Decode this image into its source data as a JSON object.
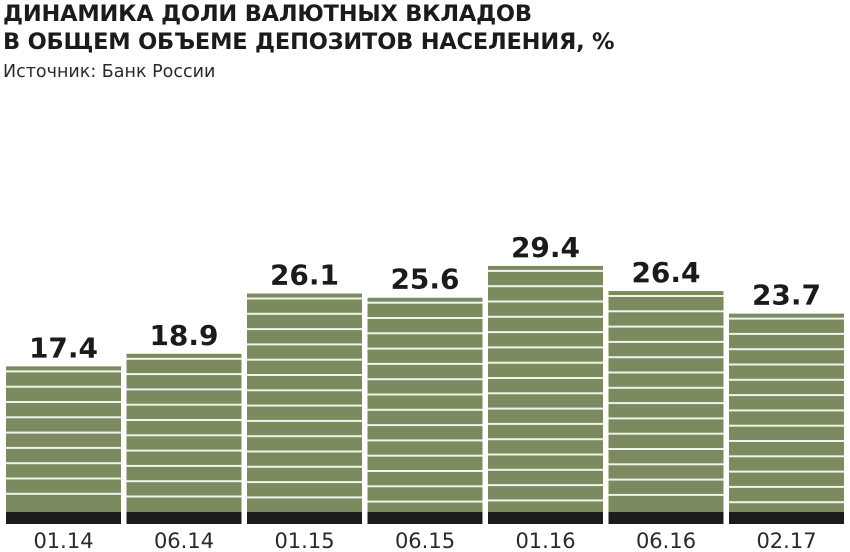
{
  "header": {
    "title_line1": "ДИНАМИКА ДОЛИ ВАЛЮТНЫХ ВКЛАДОВ",
    "title_line2": "В ОБЩЕМ ОБЪЕМЕ ДЕПОЗИТОВ НАСЕЛЕНИЯ, %",
    "source": "Источник: Банк России"
  },
  "colors": {
    "bar": "#7b8a5f",
    "stripe": "#f2f2ea",
    "baseline": "#1c1c1c",
    "text": "#1b1b1b"
  },
  "chart_data": {
    "type": "bar",
    "title": "ДИНАМИКА ДОЛИ ВАЛЮТНЫХ ВКЛАДОВ В ОБЩЕМ ОБЪЕМЕ ДЕПОЗИТОВ НАСЕЛЕНИЯ, %",
    "categories": [
      "01.14",
      "06.14",
      "01.15",
      "06.15",
      "01.16",
      "06.16",
      "02.17"
    ],
    "values": [
      17.4,
      18.9,
      26.1,
      25.6,
      29.4,
      26.4,
      23.7
    ],
    "value_labels": [
      "17.4",
      "18.9",
      "26.1",
      "25.6",
      "29.4",
      "26.4",
      "23.7"
    ],
    "xlabel": "",
    "ylabel": "",
    "ylim": [
      0,
      30
    ],
    "grid": false,
    "legend": "none"
  }
}
